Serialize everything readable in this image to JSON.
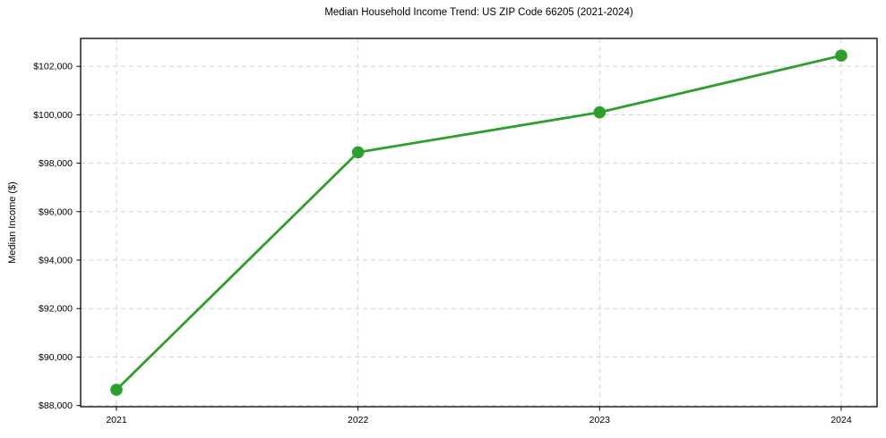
{
  "chart_data": {
    "type": "line",
    "title": "Median Household Income Trend: US ZIP Code 66205 (2021-2024)",
    "xlabel": "",
    "ylabel": "Median Income ($)",
    "categories": [
      "2021",
      "2022",
      "2023",
      "2024"
    ],
    "series": [
      {
        "name": "Median Household Income",
        "values": [
          88650,
          98450,
          100100,
          102440
        ],
        "color": "#2ca02c"
      }
    ],
    "ylim": [
      87950,
      103150
    ],
    "y_ticks": [
      88000,
      90000,
      92000,
      94000,
      96000,
      98000,
      100000,
      102000
    ],
    "y_tick_labels": [
      "$88,000",
      "$90,000",
      "$92,000",
      "$94,000",
      "$96,000",
      "$98,000",
      "$100,000",
      "$102,000"
    ],
    "grid": true,
    "grid_style": "dashed",
    "grid_color": "#d4d4d4",
    "frame_color": "#000000",
    "tick_color": "#000000",
    "legend": "none",
    "marker": "circle"
  }
}
